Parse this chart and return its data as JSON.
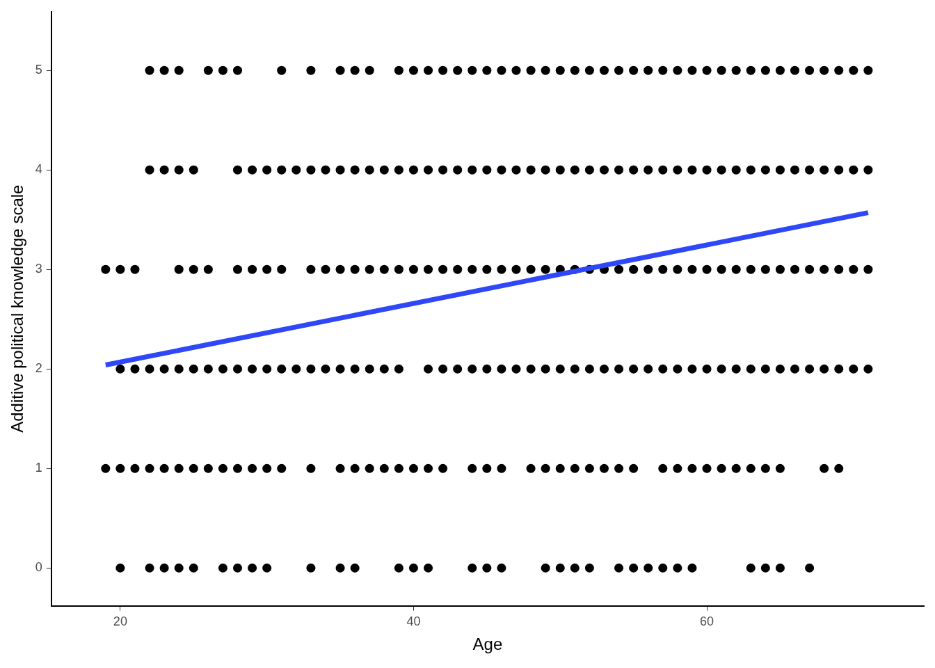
{
  "chart_data": {
    "type": "scatter",
    "xlabel": "Age",
    "ylabel": "Additive political knowledge scale",
    "xlim": [
      15.3,
      74.8
    ],
    "ylim": [
      -0.38,
      5.59
    ],
    "xticks": [
      20,
      40,
      60
    ],
    "yticks": [
      0,
      1,
      2,
      3,
      4,
      5
    ],
    "grid": false,
    "legend": false,
    "series": [
      {
        "marker": "circle",
        "color": "#000000",
        "x": [
          22,
          23,
          24,
          26,
          27,
          28,
          31,
          33,
          35,
          36,
          37,
          39,
          40,
          41,
          42,
          43,
          44,
          45,
          46,
          47,
          48,
          49,
          50,
          51,
          52,
          53,
          54,
          55,
          56,
          57,
          58,
          59,
          60,
          61,
          62,
          63,
          64,
          65,
          66,
          67,
          68,
          69,
          70,
          71
        ],
        "values": [
          5,
          5,
          5,
          5,
          5,
          5,
          5,
          5,
          5,
          5,
          5,
          5,
          5,
          5,
          5,
          5,
          5,
          5,
          5,
          5,
          5,
          5,
          5,
          5,
          5,
          5,
          5,
          5,
          5,
          5,
          5,
          5,
          5,
          5,
          5,
          5,
          5,
          5,
          5,
          5,
          5,
          5,
          5,
          5
        ]
      },
      {
        "marker": "circle",
        "color": "#000000",
        "x": [
          22,
          23,
          24,
          25,
          28,
          29,
          30,
          31,
          32,
          33,
          34,
          35,
          36,
          37,
          38,
          39,
          40,
          41,
          42,
          43,
          44,
          45,
          46,
          47,
          48,
          49,
          50,
          51,
          52,
          53,
          54,
          55,
          56,
          57,
          58,
          59,
          60,
          61,
          62,
          63,
          64,
          65,
          66,
          67,
          68,
          69,
          70,
          71
        ],
        "values": [
          4,
          4,
          4,
          4,
          4,
          4,
          4,
          4,
          4,
          4,
          4,
          4,
          4,
          4,
          4,
          4,
          4,
          4,
          4,
          4,
          4,
          4,
          4,
          4,
          4,
          4,
          4,
          4,
          4,
          4,
          4,
          4,
          4,
          4,
          4,
          4,
          4,
          4,
          4,
          4,
          4,
          4,
          4,
          4,
          4,
          4,
          4,
          4
        ]
      },
      {
        "marker": "circle",
        "color": "#000000",
        "x": [
          19,
          20,
          21,
          24,
          25,
          26,
          28,
          29,
          30,
          31,
          33,
          34,
          35,
          36,
          37,
          38,
          39,
          40,
          41,
          42,
          43,
          44,
          45,
          46,
          47,
          48,
          49,
          50,
          51,
          52,
          53,
          54,
          55,
          56,
          57,
          58,
          59,
          60,
          61,
          62,
          63,
          64,
          65,
          66,
          67,
          68,
          69,
          70,
          71
        ],
        "values": [
          3,
          3,
          3,
          3,
          3,
          3,
          3,
          3,
          3,
          3,
          3,
          3,
          3,
          3,
          3,
          3,
          3,
          3,
          3,
          3,
          3,
          3,
          3,
          3,
          3,
          3,
          3,
          3,
          3,
          3,
          3,
          3,
          3,
          3,
          3,
          3,
          3,
          3,
          3,
          3,
          3,
          3,
          3,
          3,
          3,
          3,
          3,
          3,
          3
        ]
      },
      {
        "marker": "circle",
        "color": "#000000",
        "x": [
          20,
          21,
          22,
          23,
          24,
          25,
          26,
          27,
          28,
          29,
          30,
          31,
          32,
          33,
          34,
          35,
          36,
          37,
          38,
          39,
          41,
          42,
          43,
          44,
          45,
          46,
          47,
          48,
          49,
          50,
          51,
          52,
          53,
          54,
          55,
          56,
          57,
          58,
          59,
          60,
          61,
          62,
          63,
          64,
          65,
          66,
          67,
          68,
          69,
          70,
          71
        ],
        "values": [
          2,
          2,
          2,
          2,
          2,
          2,
          2,
          2,
          2,
          2,
          2,
          2,
          2,
          2,
          2,
          2,
          2,
          2,
          2,
          2,
          2,
          2,
          2,
          2,
          2,
          2,
          2,
          2,
          2,
          2,
          2,
          2,
          2,
          2,
          2,
          2,
          2,
          2,
          2,
          2,
          2,
          2,
          2,
          2,
          2,
          2,
          2,
          2,
          2,
          2,
          2
        ]
      },
      {
        "marker": "circle",
        "color": "#000000",
        "x": [
          19,
          20,
          21,
          22,
          23,
          24,
          25,
          26,
          27,
          28,
          29,
          30,
          31,
          33,
          35,
          36,
          37,
          38,
          39,
          40,
          41,
          42,
          44,
          45,
          46,
          48,
          49,
          50,
          51,
          52,
          53,
          54,
          55,
          57,
          58,
          59,
          60,
          61,
          62,
          63,
          64,
          65,
          68,
          69
        ],
        "values": [
          1,
          1,
          1,
          1,
          1,
          1,
          1,
          1,
          1,
          1,
          1,
          1,
          1,
          1,
          1,
          1,
          1,
          1,
          1,
          1,
          1,
          1,
          1,
          1,
          1,
          1,
          1,
          1,
          1,
          1,
          1,
          1,
          1,
          1,
          1,
          1,
          1,
          1,
          1,
          1,
          1,
          1,
          1,
          1
        ]
      },
      {
        "marker": "circle",
        "color": "#000000",
        "x": [
          20,
          22,
          23,
          24,
          25,
          27,
          28,
          29,
          30,
          33,
          35,
          36,
          39,
          40,
          41,
          44,
          45,
          46,
          49,
          50,
          51,
          52,
          54,
          55,
          56,
          57,
          58,
          59,
          63,
          64,
          65,
          67
        ],
        "values": [
          0,
          0,
          0,
          0,
          0,
          0,
          0,
          0,
          0,
          0,
          0,
          0,
          0,
          0,
          0,
          0,
          0,
          0,
          0,
          0,
          0,
          0,
          0,
          0,
          0,
          0,
          0,
          0,
          0,
          0,
          0,
          0
        ]
      },
      {
        "type": "line",
        "marker": "none",
        "color": "#2e48f7",
        "x": [
          19,
          71
        ],
        "values": [
          2.04,
          3.57
        ]
      }
    ]
  }
}
